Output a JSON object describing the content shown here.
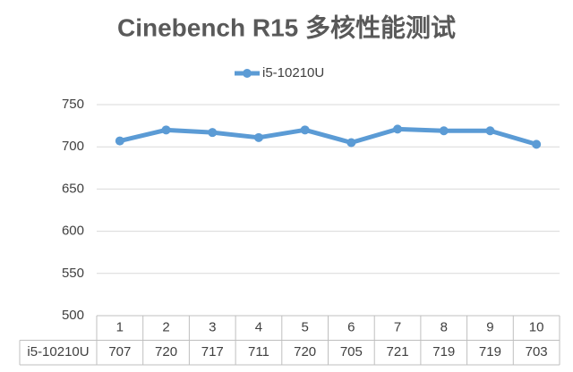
{
  "chart_data": {
    "type": "line",
    "title": "Cinebench R15 多核性能测试",
    "categories": [
      "1",
      "2",
      "3",
      "4",
      "5",
      "6",
      "7",
      "8",
      "9",
      "10"
    ],
    "series": [
      {
        "name": "i5-10210U",
        "color": "#5b9bd5",
        "values": [
          707,
          720,
          717,
          711,
          720,
          705,
          721,
          719,
          719,
          703
        ]
      }
    ],
    "ylim": [
      500,
      750
    ],
    "yticks": [
      500,
      550,
      600,
      650,
      700,
      750
    ],
    "grid": true,
    "data_table": true,
    "legend": "top"
  }
}
